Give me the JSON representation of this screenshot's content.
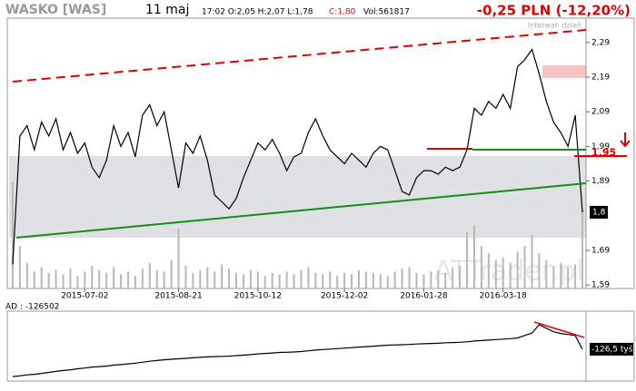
{
  "header": {
    "symbol": "WASKO [WAS]",
    "date": "11 maj",
    "quote": "17:02  O:2,05  H:2,07  L:1,78",
    "close": "C:1,80",
    "volume": "Vol:561817",
    "change": "-0,25 PLN (-12,20%)",
    "interval": "Interwał: dzień",
    "watermark": "ATTrader.pl"
  },
  "chart_data": [
    {
      "type": "line",
      "color": "#000000",
      "volume_color": "#b8b8b8",
      "categories": [
        null,
        null,
        null,
        null,
        null,
        null,
        null,
        null,
        null,
        null,
        "2015-07-02",
        null,
        null,
        null,
        null,
        null,
        null,
        null,
        null,
        null,
        null,
        null,
        null,
        "2015-08-21",
        null,
        null,
        null,
        null,
        null,
        null,
        null,
        null,
        null,
        null,
        "2015-10-12",
        null,
        null,
        null,
        null,
        null,
        null,
        null,
        null,
        null,
        null,
        null,
        "2015-12-02",
        null,
        null,
        null,
        null,
        null,
        null,
        null,
        null,
        null,
        null,
        "2016-01-28",
        null,
        null,
        null,
        null,
        null,
        null,
        null,
        null,
        null,
        null,
        "2016-03-18",
        null,
        null,
        null,
        null,
        null,
        null,
        null,
        null,
        null,
        null,
        null
      ],
      "values": [
        1.65,
        2.02,
        2.05,
        1.98,
        2.06,
        2.02,
        2.07,
        1.98,
        2.03,
        1.97,
        2.0,
        1.93,
        1.9,
        1.95,
        2.05,
        1.99,
        2.03,
        1.96,
        2.08,
        2.11,
        2.05,
        2.09,
        1.98,
        1.87,
        2.0,
        1.97,
        2.02,
        1.95,
        1.85,
        1.83,
        1.81,
        1.84,
        1.9,
        1.95,
        2.0,
        1.98,
        2.01,
        1.97,
        1.92,
        1.96,
        1.97,
        2.03,
        2.07,
        2.02,
        1.98,
        1.96,
        1.94,
        1.97,
        1.95,
        1.93,
        1.97,
        1.99,
        1.98,
        1.92,
        1.86,
        1.85,
        1.9,
        1.92,
        1.92,
        1.91,
        1.93,
        1.92,
        1.93,
        1.98,
        2.1,
        2.08,
        2.12,
        2.1,
        2.14,
        2.1,
        2.22,
        2.24,
        2.27,
        2.2,
        2.12,
        2.06,
        2.03,
        1.99,
        2.08,
        1.8
      ],
      "volume": [
        750000,
        300000,
        180000,
        120000,
        150000,
        110000,
        130000,
        100000,
        140000,
        90000,
        120000,
        160000,
        130000,
        110000,
        150000,
        100000,
        120000,
        90000,
        140000,
        180000,
        130000,
        120000,
        200000,
        420000,
        160000,
        110000,
        130000,
        150000,
        120000,
        170000,
        140000,
        110000,
        100000,
        130000,
        120000,
        90000,
        110000,
        100000,
        120000,
        100000,
        130000,
        150000,
        110000,
        100000,
        120000,
        90000,
        110000,
        100000,
        130000,
        120000,
        110000,
        100000,
        90000,
        120000,
        140000,
        150000,
        110000,
        100000,
        120000,
        130000,
        110000,
        150000,
        160000,
        400000,
        450000,
        300000,
        250000,
        200000,
        220000,
        180000,
        260000,
        300000,
        380000,
        250000,
        200000,
        160000,
        180000,
        150000,
        170000,
        561817
      ],
      "ylim": [
        1.58,
        2.355
      ],
      "yticks": [
        {
          "value": 2.29,
          "label": "2,29"
        },
        {
          "value": 2.19,
          "label": "2,19"
        },
        {
          "value": 2.09,
          "label": "2,09"
        },
        {
          "value": 1.99,
          "label": "1,99"
        },
        {
          "value": 1.89,
          "label": "1,89"
        },
        {
          "value": 1.69,
          "label": "1,69"
        },
        {
          "value": 1.59,
          "label": "1,59"
        }
      ],
      "markers": [
        {
          "value": 1.95,
          "label": "1,95",
          "color": "#e00000"
        },
        {
          "value": 1.8,
          "label": "1,8",
          "color": "#000000"
        }
      ]
    },
    {
      "type": "line",
      "title": "AD : -126502",
      "color": "#000000",
      "values": [
        -239000,
        -236000,
        -232000,
        -230000,
        -226000,
        -222000,
        -218000,
        -214000,
        -211000,
        -207000,
        -204000,
        -200000,
        -198000,
        -196000,
        -192000,
        -190000,
        -187000,
        -184000,
        -180000,
        -176000,
        -173000,
        -170000,
        -168000,
        -166000,
        -164000,
        -162000,
        -160000,
        -158000,
        -157000,
        -156000,
        -155000,
        -153000,
        -151000,
        -149000,
        -146000,
        -144000,
        -142000,
        -140000,
        -139000,
        -138000,
        -136000,
        -133000,
        -130000,
        -128000,
        -126000,
        -124000,
        -122000,
        -120000,
        -118000,
        -116000,
        -114000,
        -112000,
        -110000,
        -109000,
        -108000,
        -107000,
        -105000,
        -104000,
        -103000,
        -102000,
        -100000,
        -99000,
        -98000,
        -96000,
        -93000,
        -91000,
        -89000,
        -87000,
        -85000,
        -83000,
        -80000,
        -70000,
        -60000,
        -26000,
        -40000,
        -55000,
        -62000,
        -66000,
        -70000,
        -126502
      ],
      "value_labels": [
        null,
        null,
        null,
        null,
        null,
        null,
        null,
        null,
        null,
        null,
        null,
        null,
        null,
        null,
        null,
        null,
        null,
        null,
        null,
        null,
        null,
        null,
        null,
        null,
        null,
        null,
        null,
        null,
        null,
        null,
        null,
        null,
        null,
        null,
        null,
        null,
        null,
        null,
        null,
        null,
        null,
        null,
        null,
        null,
        null,
        null,
        null,
        null,
        null,
        null,
        null,
        null,
        null,
        null,
        null,
        null,
        null,
        null,
        null,
        null,
        null,
        null,
        null,
        null,
        null,
        null,
        null,
        null,
        null,
        null,
        null,
        null,
        null,
        null,
        null,
        null,
        null,
        null,
        null,
        "-126,5 tyś"
      ],
      "ylim": [
        -250000,
        30000
      ]
    }
  ]
}
